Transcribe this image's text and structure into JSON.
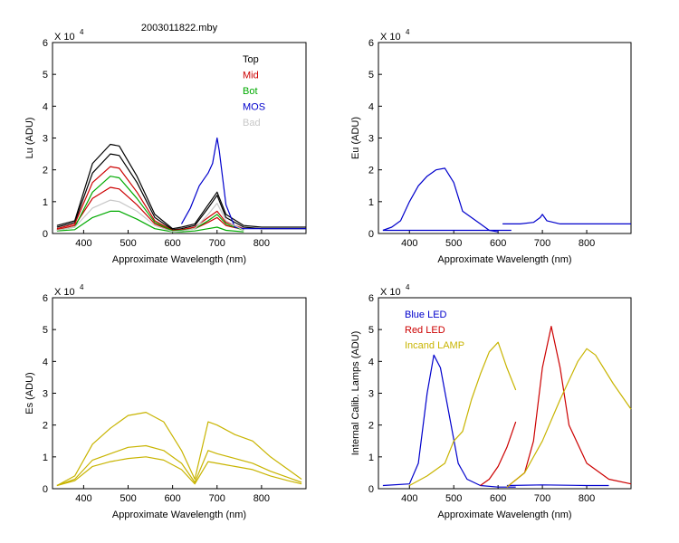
{
  "figure_title": "2003011822.mby",
  "chart_data": [
    {
      "type": "line",
      "panel": "top-left",
      "title": "2003011822.mby",
      "xlabel": "Approximate Wavelength (nm)",
      "ylabel": "Lu (ADU)",
      "xlim": [
        330,
        900
      ],
      "ylim": [
        0,
        6
      ],
      "y_multiplier": "X 10",
      "y_exponent": "4",
      "xticks": [
        "400",
        "500",
        "600",
        "700",
        "800"
      ],
      "yticks": [
        "0",
        "1",
        "2",
        "3",
        "4",
        "5",
        "6"
      ],
      "legend_position": "top-right",
      "legend": [
        {
          "label": "Top",
          "color": "#000000"
        },
        {
          "label": "Mid",
          "color": "#cc0000"
        },
        {
          "label": "Bot",
          "color": "#00aa00"
        },
        {
          "label": "MOS",
          "color": "#0000cc"
        },
        {
          "label": "Bad",
          "color": "#c8c8c8"
        }
      ],
      "series": [
        {
          "name": "Top",
          "color": "#000000",
          "x": [
            340,
            380,
            420,
            460,
            480,
            520,
            560,
            600,
            620,
            650,
            680,
            700,
            720,
            760,
            800,
            840,
            880,
            900
          ],
          "values": [
            0.25,
            0.4,
            2.2,
            2.8,
            2.75,
            1.8,
            0.6,
            0.15,
            0.2,
            0.3,
            0.9,
            1.3,
            0.6,
            0.25,
            0.2,
            0.2,
            0.2,
            0.2
          ]
        },
        {
          "name": "Top",
          "color": "#000000",
          "x": [
            340,
            380,
            420,
            460,
            480,
            520,
            560,
            600,
            620,
            650,
            680,
            700,
            720,
            760,
            800,
            840,
            880,
            900
          ],
          "values": [
            0.2,
            0.35,
            1.9,
            2.5,
            2.45,
            1.6,
            0.5,
            0.12,
            0.15,
            0.25,
            0.8,
            1.2,
            0.5,
            0.2,
            0.15,
            0.15,
            0.15,
            0.15
          ]
        },
        {
          "name": "Mid",
          "color": "#cc0000",
          "x": [
            340,
            380,
            420,
            460,
            480,
            520,
            560,
            600,
            620,
            650,
            680,
            700,
            720,
            760
          ],
          "values": [
            0.15,
            0.3,
            1.6,
            2.1,
            2.05,
            1.3,
            0.4,
            0.1,
            0.12,
            0.2,
            0.5,
            0.7,
            0.35,
            0.15
          ]
        },
        {
          "name": "Mid",
          "color": "#cc0000",
          "x": [
            340,
            380,
            420,
            460,
            480,
            520,
            560,
            600,
            620,
            650,
            680,
            700,
            720,
            760
          ],
          "values": [
            0.12,
            0.25,
            1.1,
            1.45,
            1.4,
            0.9,
            0.3,
            0.08,
            0.1,
            0.15,
            0.35,
            0.5,
            0.25,
            0.12
          ]
        },
        {
          "name": "Bot",
          "color": "#00aa00",
          "x": [
            340,
            380,
            420,
            460,
            480,
            520,
            560,
            600,
            620,
            650,
            680,
            700,
            720,
            760
          ],
          "values": [
            0.1,
            0.2,
            1.3,
            1.8,
            1.75,
            1.1,
            0.35,
            0.08,
            0.1,
            0.15,
            0.4,
            0.6,
            0.3,
            0.1
          ]
        },
        {
          "name": "Bot",
          "color": "#00aa00",
          "x": [
            340,
            380,
            420,
            460,
            480,
            520,
            560,
            600,
            620,
            650,
            680,
            700,
            720,
            760
          ],
          "values": [
            0.08,
            0.12,
            0.5,
            0.7,
            0.7,
            0.45,
            0.15,
            0.05,
            0.05,
            0.08,
            0.15,
            0.2,
            0.1,
            0.05
          ]
        },
        {
          "name": "MOS",
          "color": "#0000cc",
          "x": [
            620,
            640,
            660,
            680,
            690,
            700,
            705,
            720,
            740,
            760,
            800,
            850,
            900
          ],
          "values": [
            0.3,
            0.8,
            1.5,
            1.9,
            2.2,
            3.0,
            2.6,
            0.9,
            0.2,
            0.15,
            0.15,
            0.15,
            0.15
          ]
        },
        {
          "name": "Bad",
          "color": "#c8c8c8",
          "x": [
            340,
            380,
            420,
            460,
            480,
            520,
            560,
            600,
            620,
            650,
            680,
            700,
            720,
            760
          ],
          "values": [
            0.1,
            0.2,
            0.8,
            1.05,
            1.0,
            0.7,
            0.25,
            0.06,
            0.08,
            0.15,
            0.6,
            0.95,
            0.4,
            0.1
          ]
        }
      ]
    },
    {
      "type": "line",
      "panel": "top-right",
      "xlabel": "Approximate Wavelength (nm)",
      "ylabel": "Eu  (ADU)",
      "xlim": [
        330,
        900
      ],
      "ylim": [
        0,
        6
      ],
      "y_multiplier": "X 10",
      "y_exponent": "4",
      "xticks": [
        "400",
        "500",
        "600",
        "700",
        "800"
      ],
      "yticks": [
        "0",
        "1",
        "2",
        "3",
        "4",
        "5",
        "6"
      ],
      "series": [
        {
          "name": "Eu",
          "color": "#0000cc",
          "x": [
            340,
            360,
            380,
            400,
            420,
            440,
            460,
            480,
            500,
            520,
            540,
            560,
            580,
            600
          ],
          "values": [
            0.1,
            0.2,
            0.4,
            1.0,
            1.5,
            1.8,
            2.0,
            2.05,
            1.6,
            0.7,
            0.5,
            0.3,
            0.1,
            0.05
          ]
        },
        {
          "name": "Eu",
          "color": "#0000cc",
          "x": [
            340,
            400,
            500,
            560,
            630
          ],
          "values": [
            0.1,
            0.1,
            0.1,
            0.1,
            0.1
          ]
        },
        {
          "name": "Eu",
          "color": "#0000cc",
          "x": [
            610,
            650,
            680,
            695,
            700,
            710,
            740,
            800,
            900
          ],
          "values": [
            0.3,
            0.3,
            0.35,
            0.5,
            0.6,
            0.4,
            0.3,
            0.3,
            0.3
          ]
        }
      ]
    },
    {
      "type": "line",
      "panel": "bottom-left",
      "xlabel": "Approximate Wavelength (nm)",
      "ylabel": "Es  (ADU)",
      "xlim": [
        330,
        900
      ],
      "ylim": [
        0,
        6
      ],
      "y_multiplier": "X 10",
      "y_exponent": "4",
      "xticks": [
        "400",
        "500",
        "600",
        "700",
        "800"
      ],
      "yticks": [
        "0",
        "1",
        "2",
        "3",
        "4",
        "5",
        "6"
      ],
      "series": [
        {
          "name": "Es",
          "color": "#c8b400",
          "x": [
            340,
            380,
            420,
            460,
            500,
            540,
            580,
            620,
            650,
            680,
            700,
            740,
            780,
            820,
            860,
            890
          ],
          "values": [
            0.1,
            0.4,
            1.4,
            1.9,
            2.3,
            2.4,
            2.1,
            1.2,
            0.3,
            2.1,
            2.0,
            1.7,
            1.5,
            1.0,
            0.6,
            0.3
          ]
        },
        {
          "name": "Es",
          "color": "#c8b400",
          "x": [
            340,
            380,
            420,
            460,
            500,
            540,
            580,
            620,
            650,
            680,
            700,
            740,
            780,
            820,
            860,
            890
          ],
          "values": [
            0.1,
            0.3,
            0.9,
            1.1,
            1.3,
            1.35,
            1.2,
            0.8,
            0.2,
            1.2,
            1.1,
            0.95,
            0.8,
            0.55,
            0.35,
            0.2
          ]
        },
        {
          "name": "Es",
          "color": "#c8b400",
          "x": [
            340,
            380,
            420,
            460,
            500,
            540,
            580,
            620,
            650,
            680,
            700,
            740,
            780,
            820,
            860,
            890
          ],
          "values": [
            0.1,
            0.25,
            0.7,
            0.85,
            0.95,
            1.0,
            0.9,
            0.6,
            0.15,
            0.85,
            0.8,
            0.7,
            0.6,
            0.4,
            0.25,
            0.15
          ]
        }
      ]
    },
    {
      "type": "line",
      "panel": "bottom-right",
      "xlabel": "Approximate Wavelength (nm)",
      "ylabel": "Internal Calib. Lamps (ADU)",
      "xlim": [
        330,
        900
      ],
      "ylim": [
        0,
        6
      ],
      "y_multiplier": "X 10",
      "y_exponent": "4",
      "xticks": [
        "400",
        "500",
        "600",
        "700",
        "800"
      ],
      "yticks": [
        "0",
        "1",
        "2",
        "3",
        "4",
        "5",
        "6"
      ],
      "legend_position": "top-left",
      "legend": [
        {
          "label": "Blue LED",
          "color": "#0000cc"
        },
        {
          "label": "Red LED",
          "color": "#cc0000"
        },
        {
          "label": "Incand LAMP",
          "color": "#c8b400"
        }
      ],
      "series": [
        {
          "name": "Blue LED",
          "color": "#0000cc",
          "x": [
            340,
            400,
            420,
            440,
            455,
            470,
            490,
            510,
            530,
            560,
            600,
            640
          ],
          "values": [
            0.1,
            0.15,
            0.8,
            3.0,
            4.2,
            3.8,
            2.3,
            0.8,
            0.3,
            0.1,
            0.05,
            0.05
          ]
        },
        {
          "name": "Blue LED",
          "color": "#0000cc",
          "x": [
            620,
            700,
            800,
            850
          ],
          "values": [
            0.1,
            0.12,
            0.1,
            0.1
          ]
        },
        {
          "name": "Red LED",
          "color": "#cc0000",
          "x": [
            560,
            580,
            600,
            620,
            640
          ],
          "values": [
            0.1,
            0.3,
            0.7,
            1.3,
            2.1
          ]
        },
        {
          "name": "Red LED",
          "color": "#cc0000",
          "x": [
            620,
            660,
            680,
            700,
            720,
            740,
            760,
            800,
            850,
            900
          ],
          "values": [
            0.05,
            0.5,
            1.5,
            3.8,
            5.1,
            3.8,
            2.0,
            0.8,
            0.3,
            0.15
          ]
        },
        {
          "name": "Incand LAMP",
          "color": "#c8b400",
          "x": [
            400,
            440,
            480,
            500,
            520,
            540,
            560,
            580,
            600,
            620,
            640
          ],
          "values": [
            0.1,
            0.4,
            0.8,
            1.5,
            1.8,
            2.8,
            3.6,
            4.3,
            4.6,
            3.8,
            3.1
          ]
        },
        {
          "name": "Incand LAMP",
          "color": "#c8b400",
          "x": [
            620,
            660,
            700,
            740,
            780,
            800,
            820,
            860,
            900
          ],
          "values": [
            0.05,
            0.5,
            1.5,
            2.8,
            4.0,
            4.4,
            4.2,
            3.3,
            2.5
          ]
        }
      ]
    }
  ]
}
